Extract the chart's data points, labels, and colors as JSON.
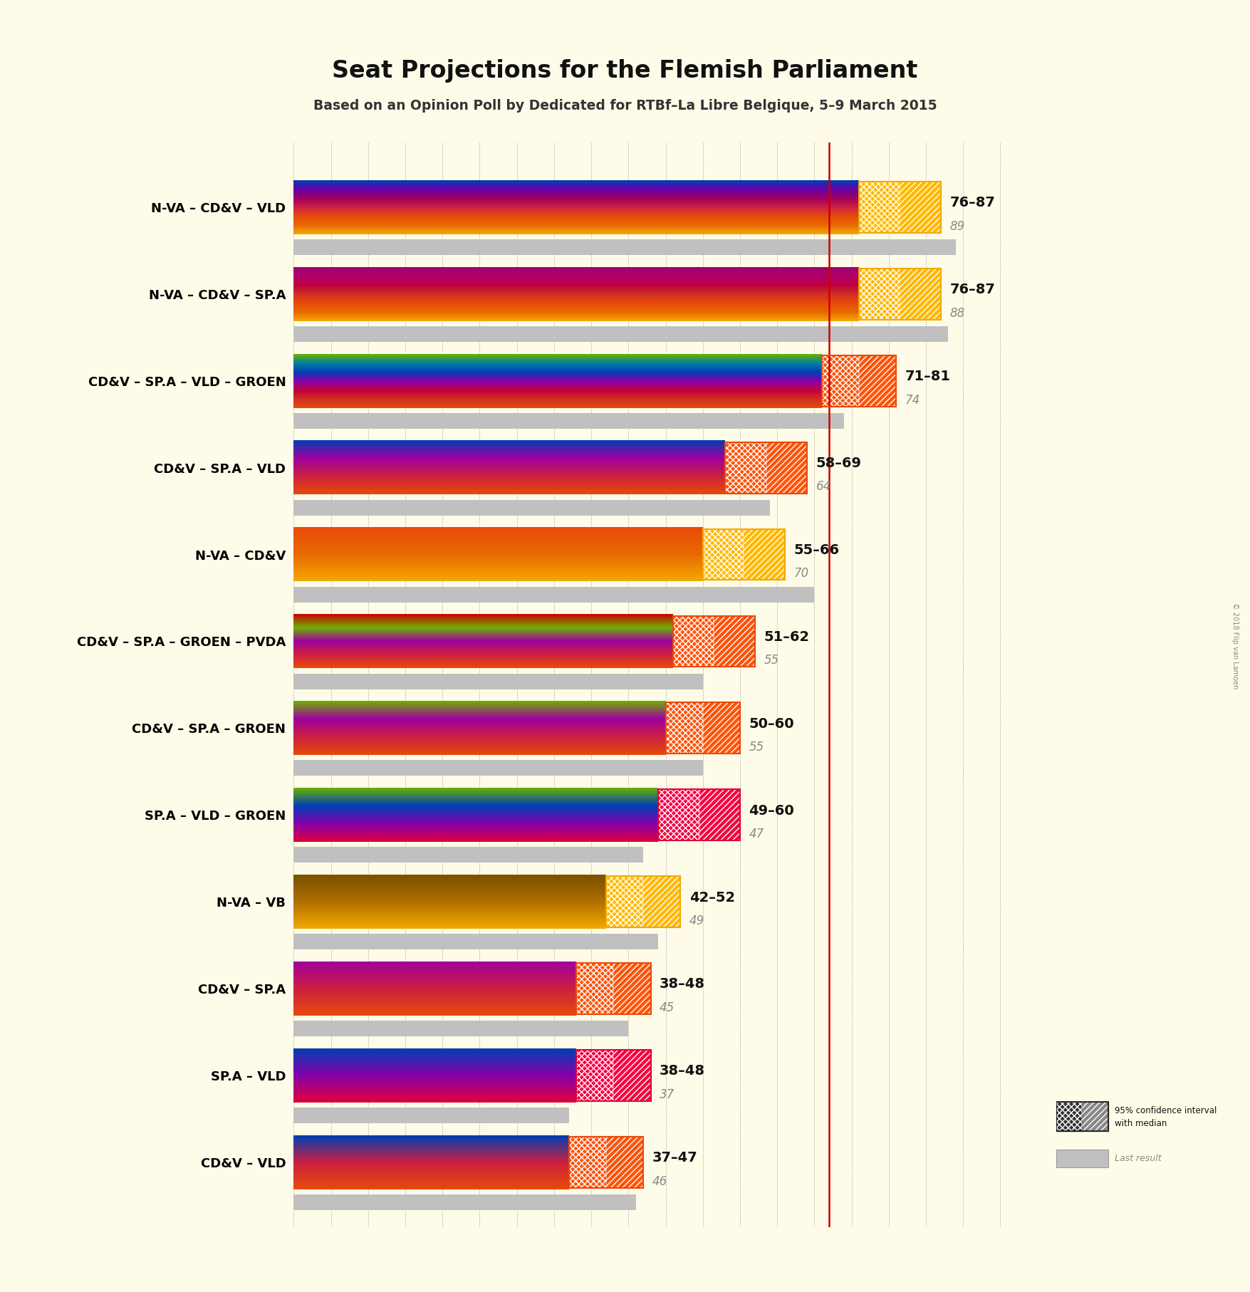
{
  "title": "Seat Projections for the Flemish Parliament",
  "subtitle": "Based on an Opinion Poll by Dedicated for RTBf–La Libre Belgique, 5–9 March 2015",
  "copyright": "© 2018 Flip van Lamoen",
  "bg_color": "#FEFCE8",
  "coalitions": [
    "N-VA – CD&V – VLD",
    "N-VA – CD&V – SP.A",
    "CD&V – SP.A – VLD – GROEN",
    "CD&V – SP.A – VLD",
    "N-VA – CD&V",
    "CD&V – SP.A – GROEN – PVDA",
    "CD&V – SP.A – GROEN",
    "SP.A – VLD – GROEN",
    "N-VA – VB",
    "CD&V – SP.A",
    "SP.A – VLD",
    "CD&V – VLD"
  ],
  "low": [
    76,
    76,
    71,
    58,
    55,
    51,
    50,
    49,
    42,
    38,
    38,
    37
  ],
  "high": [
    87,
    87,
    81,
    69,
    66,
    62,
    60,
    60,
    52,
    48,
    48,
    47
  ],
  "median": [
    82,
    82,
    76,
    64,
    61,
    57,
    55,
    55,
    47,
    43,
    43,
    42
  ],
  "last_result": [
    89,
    88,
    74,
    64,
    70,
    55,
    55,
    47,
    49,
    45,
    37,
    46
  ],
  "label_range": [
    "76–87",
    "76–87",
    "71–81",
    "58–69",
    "55–66",
    "51–62",
    "50–60",
    "49–60",
    "42–52",
    "38–48",
    "38–48",
    "37–47"
  ],
  "majority_line": 72,
  "x_max": 100,
  "coalition_colors": {
    "N-VA – CD&V – VLD": [
      "#F5A800",
      "#E86A00",
      "#E84B0A",
      "#CC2244",
      "#A00060",
      "#6600AA",
      "#003FB4"
    ],
    "N-VA – CD&V – SP.A": [
      "#F5A800",
      "#E86A00",
      "#E84B0A",
      "#D03020",
      "#C00040",
      "#B0006A",
      "#A00070"
    ],
    "CD&V – SP.A – VLD – GROEN": [
      "#E84B0A",
      "#D03020",
      "#C00040",
      "#8800AA",
      "#003FB4",
      "#0080A0",
      "#6AB200"
    ],
    "CD&V – SP.A – VLD": [
      "#E84B0A",
      "#CC2040",
      "#A000A0",
      "#003FB4"
    ],
    "N-VA – CD&V": [
      "#F5A800",
      "#E86A00",
      "#E84B0A"
    ],
    "CD&V – SP.A – GROEN – PVDA": [
      "#E84B0A",
      "#CC2040",
      "#A000A0",
      "#6AB200",
      "#CC0000"
    ],
    "CD&V – SP.A – GROEN": [
      "#E84B0A",
      "#CC2040",
      "#A000A0",
      "#6AB200"
    ],
    "SP.A – VLD – GROEN": [
      "#E0003C",
      "#8800AA",
      "#003FB4",
      "#6AB200"
    ],
    "N-VA – VB": [
      "#F5A800",
      "#B07000",
      "#7A5000"
    ],
    "CD&V – SP.A": [
      "#E84B0A",
      "#CC2040",
      "#A000A0"
    ],
    "SP.A – VLD": [
      "#E0003C",
      "#8800AA",
      "#003FB4"
    ],
    "CD&V – VLD": [
      "#E84B0A",
      "#CC2040",
      "#003FB4"
    ]
  },
  "ci_colors": {
    "N-VA – CD&V – VLD": "#F5A800",
    "N-VA – CD&V – SP.A": "#F5A800",
    "CD&V – SP.A – VLD – GROEN": "#E84B0A",
    "CD&V – SP.A – VLD": "#E84B0A",
    "N-VA – CD&V": "#F5A800",
    "CD&V – SP.A – GROEN – PVDA": "#E84B0A",
    "CD&V – SP.A – GROEN": "#E84B0A",
    "SP.A – VLD – GROEN": "#E0003C",
    "N-VA – VB": "#F5A800",
    "CD&V – SP.A": "#E84B0A",
    "SP.A – VLD": "#E0003C",
    "CD&V – VLD": "#E84B0A"
  }
}
